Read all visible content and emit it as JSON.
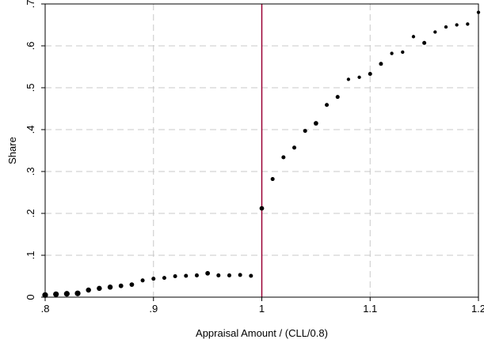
{
  "chart_data": {
    "type": "scatter",
    "title": "",
    "xlabel": "Appraisal Amount / (CLL/0.8)",
    "ylabel": "Share",
    "xlim": [
      0.8,
      1.2
    ],
    "ylim": [
      0,
      0.7
    ],
    "xticks": [
      0.8,
      0.9,
      1.0,
      1.1,
      1.2
    ],
    "xtick_labels": [
      ".8",
      ".9",
      "1",
      "1.1",
      "1.2"
    ],
    "yticks": [
      0,
      0.1,
      0.2,
      0.3,
      0.4,
      0.5,
      0.6,
      0.7
    ],
    "ytick_labels": [
      "0",
      ".1",
      ".2",
      ".3",
      ".4",
      ".5",
      ".6",
      ".7"
    ],
    "grid": true,
    "vline": {
      "x": 1.0,
      "color": "#990033"
    },
    "marker_color": "#000000",
    "series": [
      {
        "x": [
          0.8,
          0.81,
          0.82,
          0.83,
          0.84,
          0.85,
          0.86,
          0.87,
          0.88,
          0.89,
          0.9,
          0.91,
          0.92,
          0.93,
          0.94,
          0.95,
          0.96,
          0.97,
          0.98,
          0.99,
          1.0,
          1.01,
          1.02,
          1.03,
          1.04,
          1.05,
          1.06,
          1.07,
          1.08,
          1.09,
          1.1,
          1.11,
          1.12,
          1.13,
          1.14,
          1.15,
          1.16,
          1.17,
          1.18,
          1.19,
          1.2
        ],
        "y": [
          0.005,
          0.007,
          0.008,
          0.009,
          0.017,
          0.021,
          0.024,
          0.027,
          0.03,
          0.04,
          0.044,
          0.046,
          0.05,
          0.051,
          0.052,
          0.057,
          0.052,
          0.052,
          0.053,
          0.051,
          0.212,
          0.282,
          0.334,
          0.357,
          0.397,
          0.415,
          0.459,
          0.478,
          0.52,
          0.525,
          0.533,
          0.557,
          0.582,
          0.585,
          0.622,
          0.607,
          0.633,
          0.645,
          0.65,
          0.652,
          0.68
        ],
        "sizes": [
          5,
          5,
          5,
          5,
          4.5,
          4.5,
          4.5,
          4,
          4,
          3.5,
          3.5,
          3.5,
          3.5,
          3.5,
          3.5,
          4,
          3.5,
          3.5,
          3.5,
          3.5,
          4,
          3.5,
          3.5,
          3.5,
          3.5,
          4,
          3.5,
          3.5,
          3,
          3,
          3.5,
          3.5,
          3,
          3,
          3,
          3.5,
          3,
          3,
          3,
          3,
          3
        ]
      }
    ]
  }
}
